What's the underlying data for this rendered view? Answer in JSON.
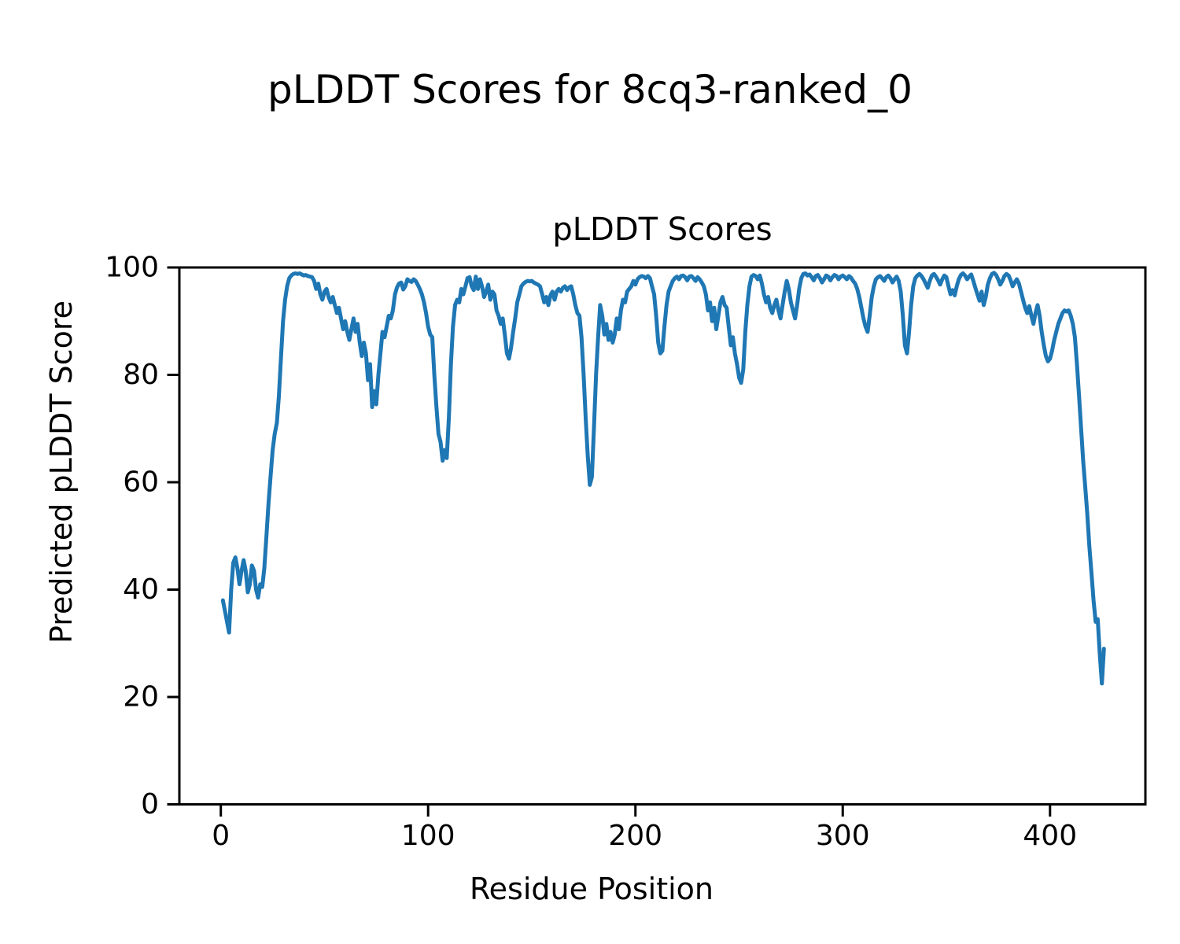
{
  "chart_data": {
    "type": "line",
    "suptitle": "pLDDT Scores for 8cq3-ranked_0",
    "title": "pLDDT Scores",
    "xlabel": "Residue Position",
    "ylabel": "Predicted pLDDT Score",
    "xlim": [
      -20,
      446
    ],
    "ylim": [
      0,
      100
    ],
    "xticks": [
      0,
      100,
      200,
      300,
      400
    ],
    "yticks": [
      0,
      20,
      40,
      60,
      80,
      100
    ],
    "grid": false,
    "legend": "none",
    "colors": {
      "line": "#1f77b4",
      "axes": "#000000",
      "background": "#ffffff"
    },
    "series": [
      {
        "name": "pLDDT",
        "x_start": 1,
        "x_step": 1,
        "values": [
          38,
          36,
          34,
          32,
          40,
          45,
          46,
          44,
          41,
          43.5,
          45.5,
          43.5,
          39.5,
          41,
          44.5,
          43.5,
          40,
          38.5,
          41,
          40.5,
          44,
          50,
          56,
          61,
          66,
          69,
          71,
          76,
          83,
          90,
          94,
          96.5,
          98,
          98.5,
          98.8,
          98.9,
          98.8,
          98.9,
          98.7,
          98.5,
          98.6,
          98.4,
          98.3,
          98.2,
          97.5,
          96,
          97,
          95,
          94,
          95.5,
          96,
          94.5,
          93.5,
          94.5,
          93,
          91.5,
          92.5,
          90.5,
          88.5,
          90,
          88,
          86.5,
          88.5,
          90.5,
          88,
          89.5,
          86,
          83.5,
          86,
          84,
          79,
          82,
          74,
          77,
          74.5,
          80,
          84,
          88,
          87,
          89,
          91,
          90.5,
          92,
          95,
          96.3,
          97,
          97.2,
          95.9,
          96.5,
          97.8,
          97.5,
          97.3,
          97.8,
          97.5,
          96.8,
          96,
          95,
          93.5,
          91.5,
          89,
          87.5,
          87,
          80,
          74,
          69,
          67.5,
          64,
          66,
          64.5,
          72,
          82,
          89,
          93,
          94,
          93.5,
          96,
          95,
          96.5,
          98,
          98.2,
          96.5,
          95.8,
          98.3,
          96,
          97.8,
          96.5,
          94.5,
          95.5,
          96.8,
          94,
          95.5,
          95,
          92,
          91,
          89.5,
          90.5,
          87.5,
          84,
          83,
          85,
          88,
          90.5,
          93.5,
          95,
          96.5,
          97,
          97.3,
          97.5,
          97.4,
          97.5,
          97.2,
          97,
          96.8,
          96.5,
          95,
          93.5,
          94.5,
          93,
          94.8,
          95.5,
          94,
          95.5,
          96,
          95.5,
          96.2,
          96.5,
          95.8,
          96.3,
          96.5,
          95,
          93,
          91.5,
          91,
          87,
          80,
          72,
          65,
          59.5,
          61,
          70,
          80,
          87,
          93,
          91,
          87.5,
          89.5,
          86.5,
          88,
          86,
          87.5,
          90.5,
          88.5,
          92,
          94,
          93.5,
          95.5,
          96,
          96.5,
          97.5,
          96.8,
          97.8,
          98.2,
          98.4,
          98.3,
          98,
          98.4,
          98,
          96.5,
          95,
          91,
          86,
          84,
          84.5,
          89,
          93,
          95.5,
          96.5,
          97.5,
          98,
          98.3,
          97.8,
          98.4,
          98.5,
          98.2,
          97.6,
          98.3,
          98.4,
          98,
          97.5,
          98.2,
          97.8,
          97.2,
          96.5,
          95,
          92,
          93.5,
          90,
          92.5,
          88.5,
          91,
          93.5,
          94.5,
          93,
          92.5,
          89,
          85.5,
          87,
          84,
          82,
          79.5,
          78.5,
          81,
          88,
          93,
          96.5,
          98.3,
          98.6,
          98.4,
          97.8,
          98.5,
          97,
          95,
          93.5,
          94.5,
          92.5,
          91.5,
          93,
          94,
          92,
          90.5,
          93,
          95.5,
          97.5,
          96,
          93.5,
          92,
          90.5,
          93,
          96,
          98,
          98.8,
          98.9,
          98.5,
          98.7,
          98.2,
          97.6,
          98.4,
          98.6,
          98,
          97.2,
          97.8,
          98.5,
          98.3,
          97.6,
          98.2,
          98.6,
          98.4,
          97.8,
          98.3,
          98.5,
          98.2,
          97.8,
          98.4,
          98.1,
          97.5,
          97,
          96,
          94.5,
          92.5,
          90.5,
          89,
          88,
          91,
          94.5,
          96.5,
          97.8,
          98.2,
          98.4,
          98,
          97.5,
          98.2,
          98.5,
          98,
          97.2,
          97.8,
          98.3,
          97.5,
          95.5,
          91,
          85.5,
          84,
          88,
          93,
          96.5,
          98,
          98.5,
          98.8,
          98.4,
          97.8,
          97,
          96.2,
          97.5,
          98.5,
          98.8,
          98.3,
          97.6,
          96.8,
          97.8,
          98.5,
          98.2,
          96.5,
          95,
          95.8,
          94.8,
          96.5,
          97.8,
          98.6,
          98.9,
          98.5,
          97.8,
          98.3,
          98.7,
          97.5,
          96.2,
          95,
          93.8,
          95.5,
          93,
          94.5,
          96.8,
          98,
          98.8,
          99,
          98.6,
          97.8,
          96.8,
          97.5,
          98.4,
          98.8,
          98.5,
          97.6,
          96.5,
          97.2,
          97.8,
          97,
          95.5,
          94,
          92.5,
          91.5,
          92.8,
          91,
          89.5,
          91.5,
          93,
          91,
          88,
          85.5,
          83.5,
          82.5,
          83,
          84.5,
          86.5,
          88,
          89.5,
          90.5,
          91.5,
          92,
          91.8,
          92,
          91,
          89.5,
          87,
          82,
          76,
          70,
          64,
          59,
          54,
          48,
          43,
          38,
          34,
          34.5,
          28,
          22.5,
          29
        ]
      }
    ]
  }
}
